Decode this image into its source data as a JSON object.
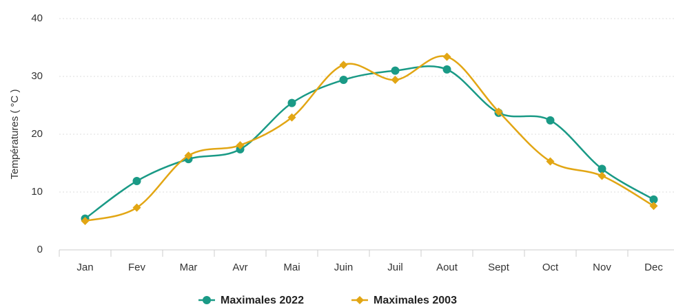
{
  "chart_data": {
    "type": "line",
    "y_label": "Températures ( °C )",
    "categories": [
      "Jan",
      "Fev",
      "Mar",
      "Avr",
      "Mai",
      "Juin",
      "Juil",
      "Aout",
      "Sept",
      "Oct",
      "Nov",
      "Dec"
    ],
    "series": [
      {
        "name": "Maximales 2022",
        "color": "#1a9a86",
        "marker": "circle",
        "values": [
          5.4,
          11.9,
          15.7,
          17.4,
          25.4,
          29.4,
          31.0,
          31.2,
          23.7,
          22.4,
          14.0,
          8.7
        ]
      },
      {
        "name": "Maximales 2003",
        "color": "#e2a614",
        "marker": "diamond",
        "values": [
          5.0,
          7.3,
          16.3,
          18.1,
          22.9,
          32.0,
          29.4,
          33.4,
          23.9,
          15.3,
          12.8,
          7.6
        ]
      }
    ],
    "ylim": [
      0,
      40
    ],
    "yticks": [
      0,
      10,
      20,
      30,
      40
    ],
    "grid": true,
    "legend": "bottom"
  }
}
